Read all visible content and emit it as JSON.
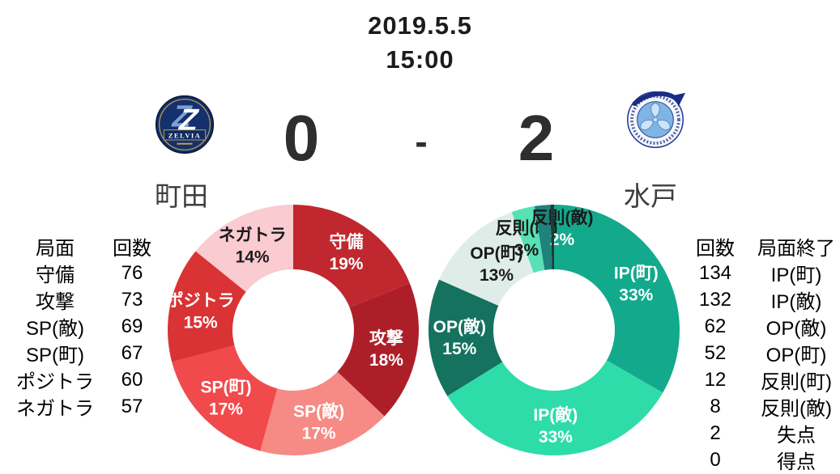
{
  "header": {
    "date": "2019.5.5",
    "time": "15:00"
  },
  "scoreboard": {
    "home": {
      "name": "町田",
      "score": "0",
      "logo": "machida-zelvia-crest",
      "crest_text": "ZELVIA"
    },
    "separator": "-",
    "away": {
      "name": "水戸",
      "score": "2",
      "logo": "mito-hollyhock-crest"
    }
  },
  "phase_table": {
    "headers": [
      "局面",
      "回数"
    ],
    "rows": [
      [
        "守備",
        "76"
      ],
      [
        "攻撃",
        "73"
      ],
      [
        "SP(敵)",
        "69"
      ],
      [
        "SP(町)",
        "67"
      ],
      [
        "ポジトラ",
        "60"
      ],
      [
        "ネガトラ",
        "57"
      ]
    ]
  },
  "phase_end_table": {
    "headers": [
      "回数",
      "局面終了"
    ],
    "rows": [
      [
        "134",
        "IP(町)"
      ],
      [
        "132",
        "IP(敵)"
      ],
      [
        "62",
        "OP(敵)"
      ],
      [
        "52",
        "OP(町)"
      ],
      [
        "12",
        "反則(町)"
      ],
      [
        "8",
        "反則(敵)"
      ],
      [
        "2",
        "失点"
      ],
      [
        "0",
        "得点"
      ]
    ]
  },
  "chart_data": [
    {
      "id": "machida-phase-share",
      "type": "pie",
      "style": "donut",
      "team": "町田",
      "legend_position": "none",
      "slices": [
        {
          "label": "守備",
          "value": 76,
          "pct_label": "19%",
          "color": "#C1272E",
          "label_color": "#FFFFFF"
        },
        {
          "label": "攻撃",
          "value": 73,
          "pct_label": "18%",
          "color": "#AC1F29",
          "label_color": "#FFFFFF"
        },
        {
          "label": "SP(敵)",
          "value": 69,
          "pct_label": "17%",
          "color": "#F58B84",
          "label_color": "#FFFFFF"
        },
        {
          "label": "SP(町)",
          "value": 67,
          "pct_label": "17%",
          "color": "#F04A4D",
          "label_color": "#FFFFFF"
        },
        {
          "label": "ポジトラ",
          "value": 60,
          "pct_label": "15%",
          "color": "#D93335",
          "label_color": "#FFFFFF"
        },
        {
          "label": "ネガトラ",
          "value": 57,
          "pct_label": "14%",
          "color": "#FACBD1",
          "label_color": "#1A1A1A"
        }
      ]
    },
    {
      "id": "mito-phase-end-share",
      "type": "pie",
      "style": "donut",
      "team": "水戸",
      "legend_position": "none",
      "slices": [
        {
          "label": "IP(町)",
          "value": 134,
          "pct_label": "33%",
          "color": "#13A98C",
          "label_color": "#FFFFFF"
        },
        {
          "label": "IP(敵)",
          "value": 132,
          "pct_label": "33%",
          "color": "#2EDCA9",
          "label_color": "#FFFFFF"
        },
        {
          "label": "OP(敵)",
          "value": 62,
          "pct_label": "15%",
          "color": "#14725F",
          "label_color": "#FFFFFF"
        },
        {
          "label": "OP(町)",
          "value": 52,
          "pct_label": "13%",
          "color": "#DFEDE9",
          "label_color": "#1A1A1A"
        },
        {
          "label": "反則(町)",
          "value": 12,
          "pct_label": "3%",
          "color": "#57E1B5",
          "label_color": "#1A1A1A"
        },
        {
          "label": "反則(敵)",
          "value": 8,
          "pct_label": "2%",
          "color": "#1F837B",
          "label_color": "#1A1A1A",
          "pct_color": "#FFFFFF"
        },
        {
          "label": "失点",
          "value": 2,
          "pct_label": "",
          "color": "#1C3A38",
          "show_label": false
        },
        {
          "label": "得点",
          "value": 0,
          "pct_label": "",
          "color": "#2EDCA9",
          "show_label": false
        }
      ]
    }
  ]
}
